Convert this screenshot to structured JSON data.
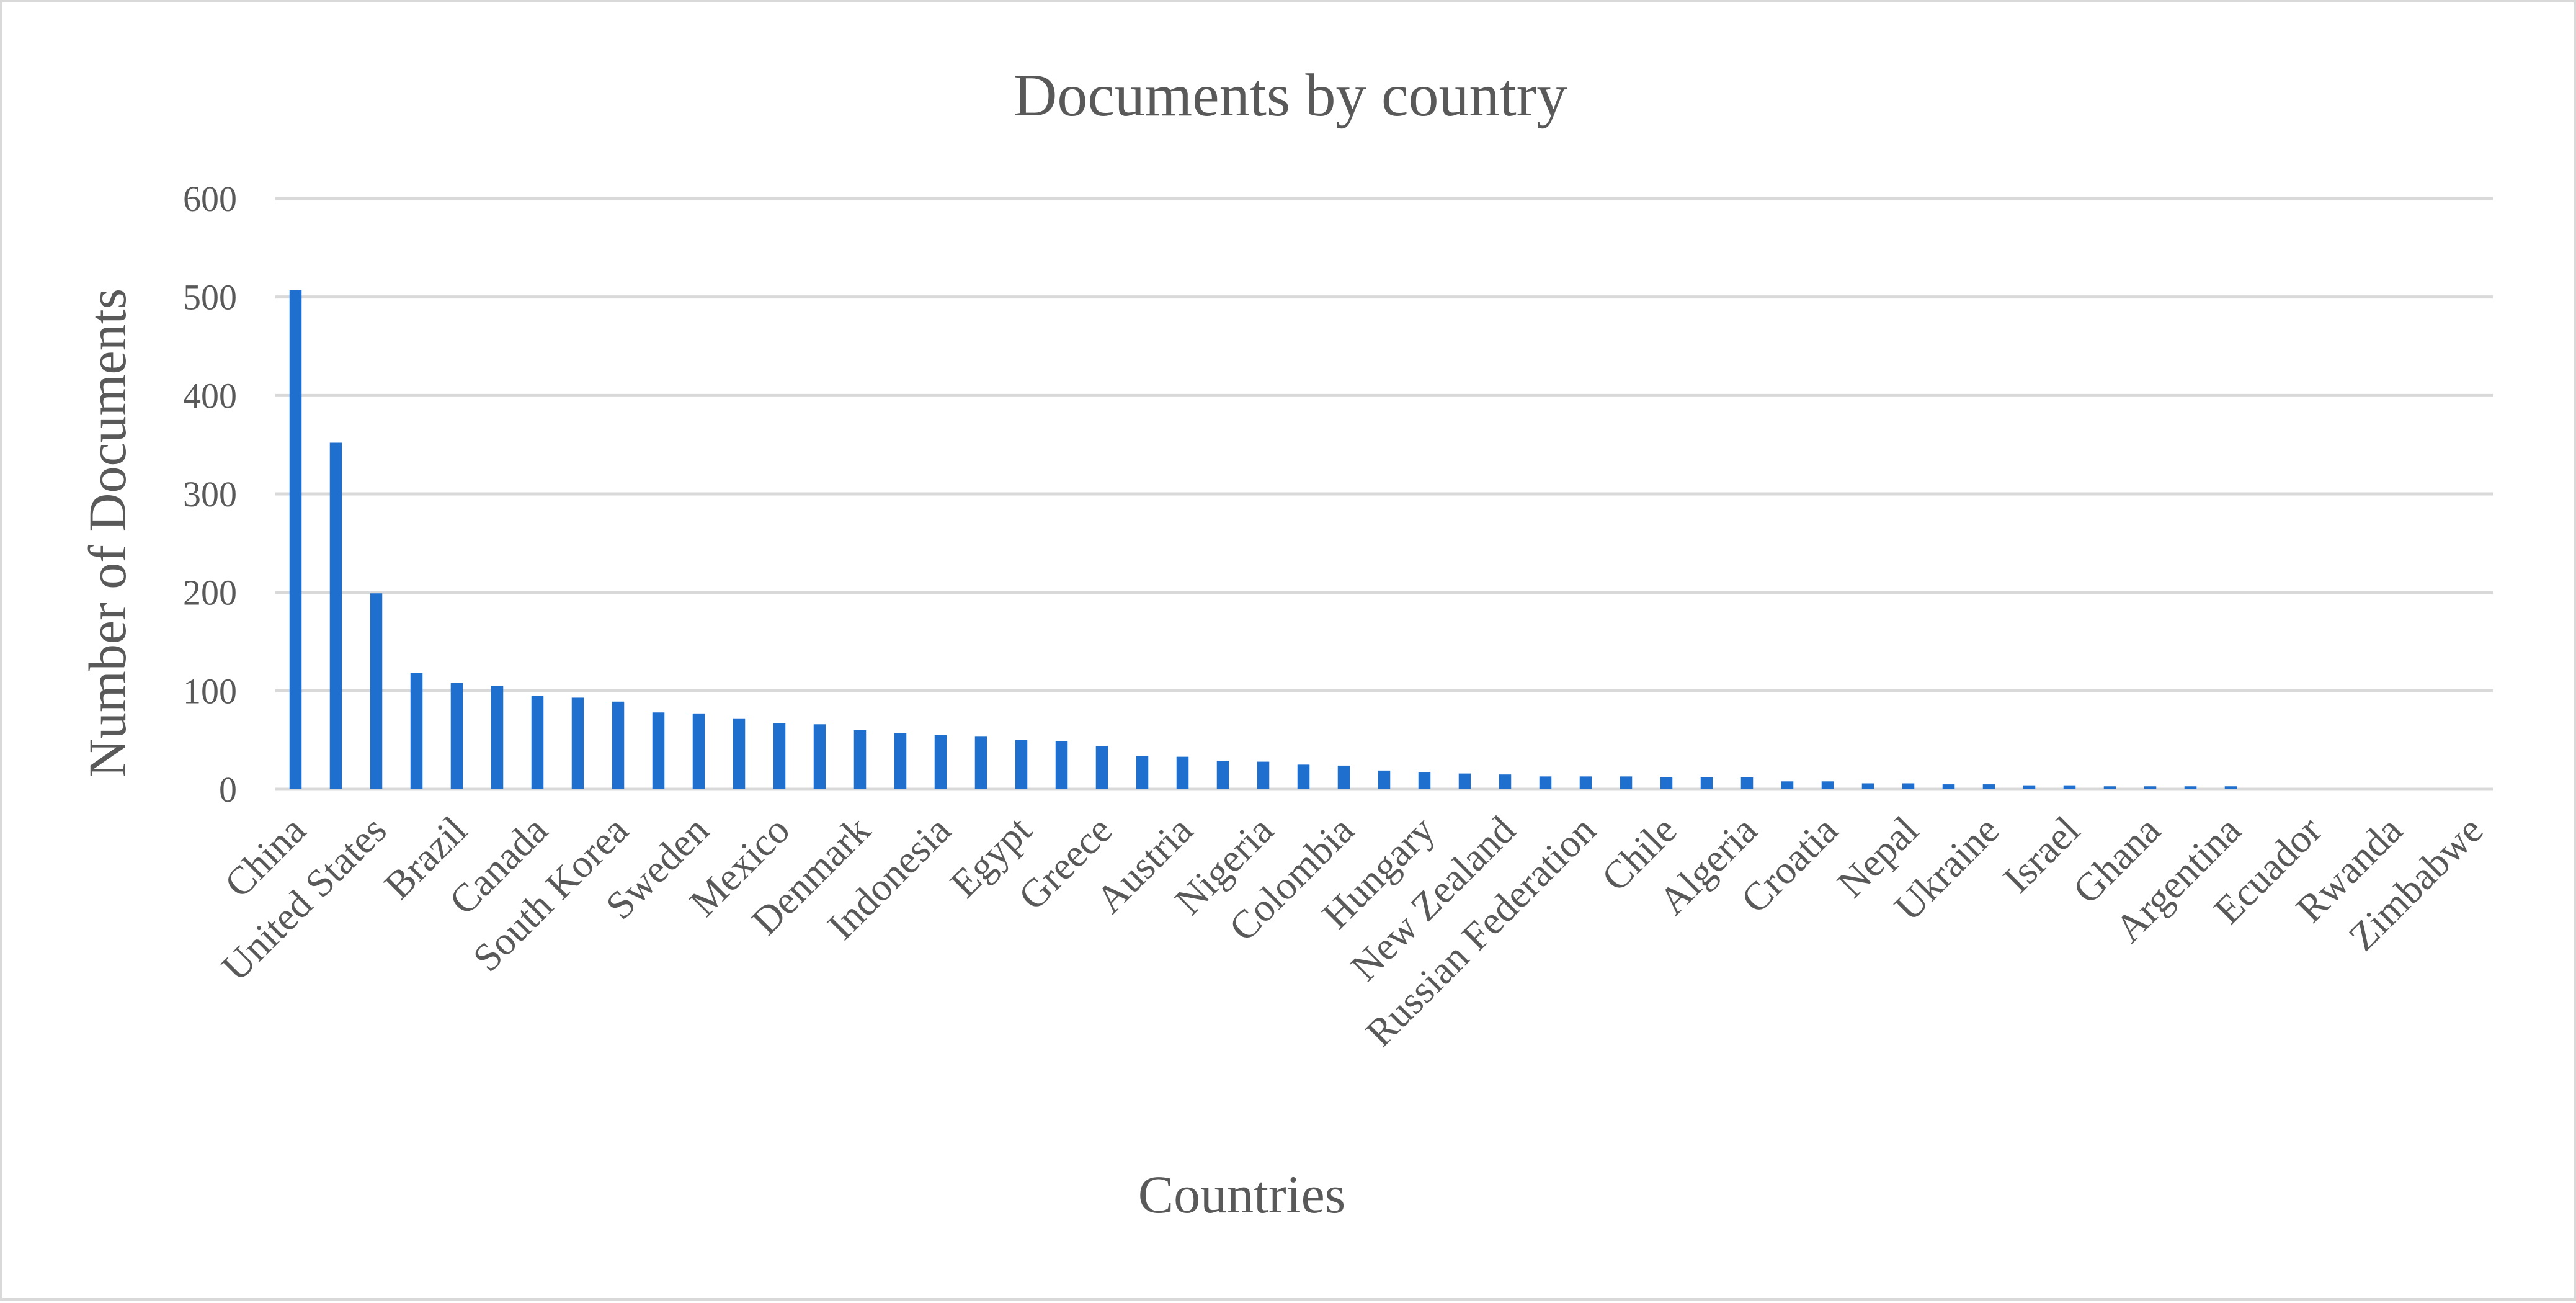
{
  "colors": {
    "bar": "#1f6fce",
    "grid": "#d9d9d9",
    "text": "#595959"
  },
  "chart_data": {
    "type": "bar",
    "title": "Documents by country",
    "xlabel": "Countries",
    "ylabel": "Number of Documents",
    "ylim": [
      0,
      600
    ],
    "yticks": [
      0,
      100,
      200,
      300,
      400,
      500,
      600
    ],
    "grid": true,
    "legend": "none",
    "categories": [
      "China",
      "",
      "United States",
      "",
      "Brazil",
      "",
      "Canada",
      "",
      "South Korea",
      "",
      "Sweden",
      "",
      "Mexico",
      "",
      "Denmark",
      "",
      "Indonesia",
      "",
      "Egypt",
      "",
      "Greece",
      "",
      "Austria",
      "",
      "Nigeria",
      "",
      "Colombia",
      "",
      "Hungary",
      "",
      "New Zealand",
      "",
      "Russian Federation",
      "",
      "Chile",
      "",
      "Algeria",
      "",
      "Croatia",
      "",
      "Nepal",
      "",
      "Ukraine",
      "",
      "Israel",
      "",
      "Ghana",
      "",
      "Argentina",
      "",
      "Ecuador",
      "",
      "Rwanda",
      "",
      "Zimbabwe"
    ],
    "values": [
      507,
      352,
      199,
      118,
      108,
      105,
      95,
      93,
      89,
      78,
      77,
      72,
      67,
      66,
      60,
      57,
      55,
      54,
      50,
      49,
      44,
      34,
      33,
      29,
      28,
      25,
      24,
      19,
      17,
      16,
      15,
      13,
      13,
      13,
      12,
      12,
      12,
      8,
      8,
      6,
      6,
      5,
      5,
      4,
      4,
      3,
      3,
      3,
      3,
      0,
      0,
      0,
      0,
      0,
      0
    ]
  }
}
